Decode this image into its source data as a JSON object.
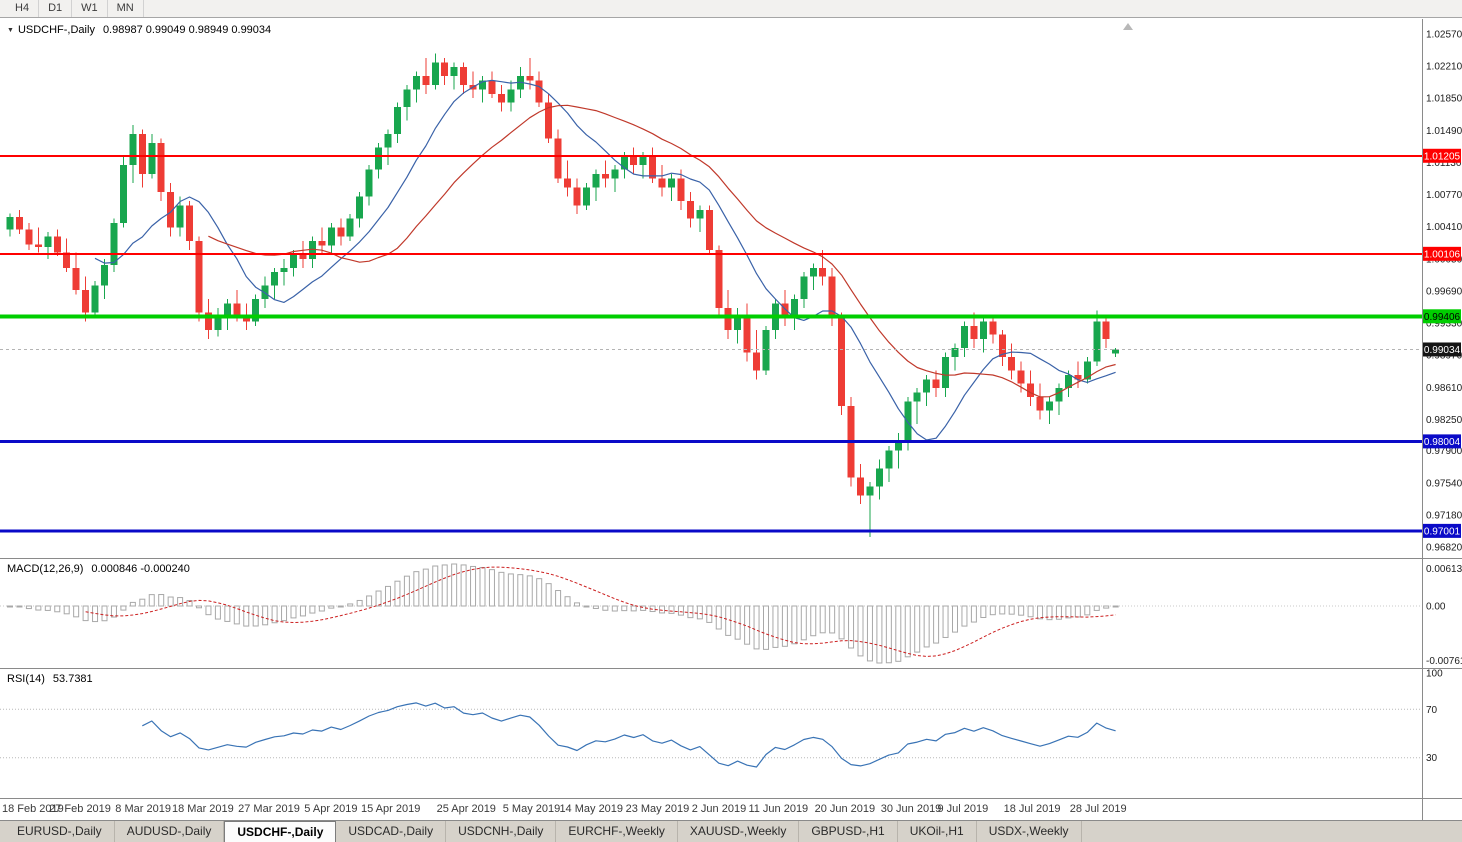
{
  "toolbar": {
    "timeframes": [
      "H4",
      "D1",
      "W1",
      "MN"
    ]
  },
  "main_chart": {
    "symbol_title": "USDCHF-,Daily",
    "ohlc_text": "0.98987 0.99049 0.98949 0.99034",
    "current_price": 0.99034,
    "axis_ticks": [
      "1.02570",
      "1.02210",
      "1.01850",
      "1.01490",
      "1.01130",
      "1.00770",
      "1.00410",
      "1.00050",
      "0.99690",
      "0.99330",
      "0.98970",
      "0.98610",
      "0.98250",
      "0.97900",
      "0.97540",
      "0.97180",
      "0.96820"
    ],
    "badges": [
      {
        "text": "1.01205",
        "price": 1.01205,
        "bg": "#ff0000",
        "fg": "#ffffff"
      },
      {
        "text": "1.00106",
        "price": 1.00106,
        "bg": "#ff0000",
        "fg": "#ffffff"
      },
      {
        "text": "0.99406",
        "price": 0.99406,
        "bg": "#00ce00",
        "fg": "#000000"
      },
      {
        "text": "0.99034",
        "price": 0.99034,
        "bg": "#141414",
        "fg": "#ffffff"
      },
      {
        "text": "0.98004",
        "price": 0.98004,
        "bg": "#0a0ac8",
        "fg": "#ffffff"
      },
      {
        "text": "0.97001",
        "price": 0.97001,
        "bg": "#0a0ac8",
        "fg": "#ffffff"
      }
    ],
    "hlines": [
      {
        "price": 1.01205,
        "color": "#ff0000",
        "width": 2
      },
      {
        "price": 1.00106,
        "color": "#ff0000",
        "width": 2
      },
      {
        "price": 0.99406,
        "color": "#00ce00",
        "width": 4
      },
      {
        "price": 0.98004,
        "color": "#0a0ac8",
        "width": 3
      },
      {
        "price": 0.97001,
        "color": "#0a0ac8",
        "width": 3
      }
    ]
  },
  "chart_data": {
    "type": "candlestick",
    "title": "USDCHF-,Daily",
    "x_labels": [
      {
        "idx": 0,
        "label": "18 Feb 2019"
      },
      {
        "idx": 7,
        "label": "27 Feb 2019"
      },
      {
        "idx": 14,
        "label": "8 Mar 2019"
      },
      {
        "idx": 20,
        "label": "18 Mar 2019"
      },
      {
        "idx": 27,
        "label": "27 Mar 2019"
      },
      {
        "idx": 34,
        "label": "5 Apr 2019"
      },
      {
        "idx": 40,
        "label": "15 Apr 2019"
      },
      {
        "idx": 48,
        "label": "25 Apr 2019"
      },
      {
        "idx": 55,
        "label": "5 May 2019"
      },
      {
        "idx": 61,
        "label": "14 May 2019"
      },
      {
        "idx": 68,
        "label": "23 May 2019"
      },
      {
        "idx": 75,
        "label": "2 Jun 2019"
      },
      {
        "idx": 81,
        "label": "11 Jun 2019"
      },
      {
        "idx": 88,
        "label": "20 Jun 2019"
      },
      {
        "idx": 95,
        "label": "30 Jun 2019"
      },
      {
        "idx": 101,
        "label": "9 Jul 2019"
      },
      {
        "idx": 108,
        "label": "18 Jul 2019"
      },
      {
        "idx": 115,
        "label": "28 Jul 2019"
      }
    ],
    "ohlc": [
      [
        1.0038,
        1.0056,
        1.003,
        1.0052
      ],
      [
        1.0052,
        1.006,
        1.0033,
        1.0038
      ],
      [
        1.0038,
        1.0045,
        1.0015,
        1.0021
      ],
      [
        1.0021,
        1.004,
        1.0012,
        1.0018
      ],
      [
        1.0018,
        1.0035,
        1.0005,
        1.003
      ],
      [
        1.003,
        1.0038,
        1.0008,
        1.0012
      ],
      [
        1.0012,
        1.0028,
        0.999,
        0.9995
      ],
      [
        0.9995,
        1.0012,
        0.9965,
        0.997
      ],
      [
        0.997,
        0.9985,
        0.9935,
        0.9945
      ],
      [
        0.9945,
        0.998,
        0.994,
        0.9975
      ],
      [
        0.9975,
        1.0005,
        0.996,
        0.9998
      ],
      [
        0.9998,
        1.005,
        0.999,
        1.0045
      ],
      [
        1.0045,
        1.012,
        1.004,
        1.011
      ],
      [
        1.011,
        1.0155,
        1.009,
        1.0145
      ],
      [
        1.0145,
        1.015,
        1.0085,
        1.01
      ],
      [
        1.01,
        1.0145,
        1.0095,
        1.0135
      ],
      [
        1.0135,
        1.014,
        1.007,
        1.008
      ],
      [
        1.008,
        1.009,
        1.003,
        1.004
      ],
      [
        1.004,
        1.0075,
        1.003,
        1.0065
      ],
      [
        1.0065,
        1.007,
        1.0015,
        1.0025
      ],
      [
        1.0025,
        1.003,
        0.9935,
        0.9945
      ],
      [
        0.9945,
        0.996,
        0.9915,
        0.9925
      ],
      [
        0.9925,
        0.995,
        0.9918,
        0.994
      ],
      [
        0.994,
        0.996,
        0.9925,
        0.9955
      ],
      [
        0.9955,
        0.997,
        0.9935,
        0.9942
      ],
      [
        0.9942,
        0.9955,
        0.9925,
        0.9935
      ],
      [
        0.9935,
        0.9965,
        0.993,
        0.996
      ],
      [
        0.996,
        0.9985,
        0.995,
        0.9975
      ],
      [
        0.9975,
        0.9995,
        0.996,
        0.999
      ],
      [
        0.999,
        1.0005,
        0.9975,
        0.9995
      ],
      [
        0.9995,
        1.0015,
        0.9985,
        1.001
      ],
      [
        1.001,
        1.0025,
        0.9995,
        1.0005
      ],
      [
        1.0005,
        1.003,
        0.9995,
        1.0025
      ],
      [
        1.0025,
        1.004,
        1.001,
        1.002
      ],
      [
        1.002,
        1.0045,
        1.001,
        1.004
      ],
      [
        1.004,
        1.005,
        1.002,
        1.003
      ],
      [
        1.003,
        1.0055,
        1.0025,
        1.005
      ],
      [
        1.005,
        1.008,
        1.004,
        1.0075
      ],
      [
        1.0075,
        1.011,
        1.0065,
        1.0105
      ],
      [
        1.0105,
        1.0135,
        1.0095,
        1.013
      ],
      [
        1.013,
        1.015,
        1.011,
        1.0145
      ],
      [
        1.0145,
        1.018,
        1.0135,
        1.0175
      ],
      [
        1.0175,
        1.02,
        1.016,
        1.0195
      ],
      [
        1.0195,
        1.0215,
        1.018,
        1.021
      ],
      [
        1.021,
        1.023,
        1.019,
        1.02
      ],
      [
        1.02,
        1.0235,
        1.0195,
        1.0225
      ],
      [
        1.0225,
        1.023,
        1.02,
        1.021
      ],
      [
        1.021,
        1.0225,
        1.0195,
        1.022
      ],
      [
        1.022,
        1.0225,
        1.019,
        1.02
      ],
      [
        1.02,
        1.0215,
        1.0185,
        1.0195
      ],
      [
        1.0195,
        1.021,
        1.018,
        1.0205
      ],
      [
        1.0205,
        1.0215,
        1.0185,
        1.019
      ],
      [
        1.019,
        1.02,
        1.017,
        1.018
      ],
      [
        1.018,
        1.0205,
        1.017,
        1.0195
      ],
      [
        1.0195,
        1.022,
        1.0185,
        1.021
      ],
      [
        1.021,
        1.023,
        1.0195,
        1.0205
      ],
      [
        1.0205,
        1.0215,
        1.0175,
        1.018
      ],
      [
        1.018,
        1.019,
        1.0135,
        1.014
      ],
      [
        1.014,
        1.015,
        1.009,
        1.0095
      ],
      [
        1.0095,
        1.0115,
        1.0075,
        1.0085
      ],
      [
        1.0085,
        1.0095,
        1.0055,
        1.0065
      ],
      [
        1.0065,
        1.009,
        1.006,
        1.0085
      ],
      [
        1.0085,
        1.0105,
        1.007,
        1.01
      ],
      [
        1.01,
        1.0115,
        1.0085,
        1.0095
      ],
      [
        1.0095,
        1.011,
        1.008,
        1.0105
      ],
      [
        1.0105,
        1.0125,
        1.0095,
        1.012
      ],
      [
        1.012,
        1.013,
        1.01,
        1.011
      ],
      [
        1.011,
        1.0125,
        1.0095,
        1.012
      ],
      [
        1.012,
        1.013,
        1.009,
        1.0095
      ],
      [
        1.0095,
        1.011,
        1.0075,
        1.0085
      ],
      [
        1.0085,
        1.01,
        1.007,
        1.0095
      ],
      [
        1.0095,
        1.0105,
        1.006,
        1.007
      ],
      [
        1.007,
        1.008,
        1.004,
        1.005
      ],
      [
        1.005,
        1.0065,
        1.0035,
        1.006
      ],
      [
        1.006,
        1.0065,
        1.001,
        1.0015
      ],
      [
        1.0015,
        1.002,
        0.994,
        0.995
      ],
      [
        0.995,
        0.997,
        0.9915,
        0.9925
      ],
      [
        0.9925,
        0.995,
        0.991,
        0.994
      ],
      [
        0.994,
        0.9955,
        0.989,
        0.99
      ],
      [
        0.99,
        0.9925,
        0.987,
        0.988
      ],
      [
        0.988,
        0.993,
        0.9875,
        0.9925
      ],
      [
        0.9925,
        0.996,
        0.9915,
        0.9955
      ],
      [
        0.9955,
        0.997,
        0.993,
        0.994
      ],
      [
        0.994,
        0.9965,
        0.9925,
        0.996
      ],
      [
        0.996,
        0.999,
        0.995,
        0.9985
      ],
      [
        0.9985,
        1.0,
        0.997,
        0.9995
      ],
      [
        0.9995,
        1.0015,
        0.9975,
        0.9985
      ],
      [
        0.9985,
        0.9995,
        0.993,
        0.994
      ],
      [
        0.994,
        0.9945,
        0.983,
        0.984
      ],
      [
        0.984,
        0.985,
        0.975,
        0.976
      ],
      [
        0.976,
        0.9775,
        0.973,
        0.974
      ],
      [
        0.974,
        0.9755,
        0.9693,
        0.975
      ],
      [
        0.975,
        0.978,
        0.9735,
        0.977
      ],
      [
        0.977,
        0.9795,
        0.9755,
        0.979
      ],
      [
        0.979,
        0.981,
        0.977,
        0.98
      ],
      [
        0.98,
        0.985,
        0.979,
        0.9845
      ],
      [
        0.9845,
        0.986,
        0.982,
        0.9855
      ],
      [
        0.9855,
        0.9875,
        0.984,
        0.987
      ],
      [
        0.987,
        0.988,
        0.985,
        0.986
      ],
      [
        0.986,
        0.99,
        0.985,
        0.9895
      ],
      [
        0.9895,
        0.991,
        0.988,
        0.9905
      ],
      [
        0.9905,
        0.9935,
        0.9895,
        0.993
      ],
      [
        0.993,
        0.9945,
        0.9905,
        0.9915
      ],
      [
        0.9915,
        0.994,
        0.99,
        0.9935
      ],
      [
        0.9935,
        0.994,
        0.991,
        0.992
      ],
      [
        0.992,
        0.9925,
        0.9885,
        0.9895
      ],
      [
        0.9895,
        0.991,
        0.987,
        0.988
      ],
      [
        0.988,
        0.989,
        0.9855,
        0.9865
      ],
      [
        0.9865,
        0.988,
        0.984,
        0.985
      ],
      [
        0.985,
        0.9865,
        0.9825,
        0.9835
      ],
      [
        0.9835,
        0.985,
        0.982,
        0.9845
      ],
      [
        0.9845,
        0.9865,
        0.983,
        0.986
      ],
      [
        0.986,
        0.988,
        0.985,
        0.9875
      ],
      [
        0.9875,
        0.989,
        0.986,
        0.987
      ],
      [
        0.987,
        0.9895,
        0.9865,
        0.989
      ],
      [
        0.989,
        0.9947,
        0.9885,
        0.9935
      ],
      [
        0.9935,
        0.994,
        0.9905,
        0.9915
      ],
      [
        0.98987,
        0.99049,
        0.98949,
        0.99034
      ]
    ]
  },
  "macd_panel": {
    "label": "MACD(12,26,9)",
    "values": "0.000846 -0.000240",
    "axis_max": "0.00613",
    "axis_zero": "0.00",
    "axis_min": "-0.007612"
  },
  "rsi_panel": {
    "label": "RSI(14)",
    "value": "53.7381",
    "axis": [
      "100",
      "70",
      "30"
    ],
    "levels": [
      70,
      30
    ]
  },
  "tabs": {
    "items": [
      "EURUSD-,Daily",
      "AUDUSD-,Daily",
      "USDCHF-,Daily",
      "USDCAD-,Daily",
      "USDCNH-,Daily",
      "EURCHF-,Weekly",
      "XAUUSD-,Weekly",
      "GBPUSD-,H1",
      "UKOil-,H1",
      "USDX-,Weekly"
    ],
    "active": "USDCHF-,Daily"
  },
  "colors": {
    "up": "#18a64e",
    "down": "#ee3c35",
    "ma_fast": "#3a62a8",
    "ma_slow": "#c0392b",
    "macd_hist": "#a8a8a8",
    "macd_signal": "#cc2020",
    "rsi_line": "#3973b5",
    "axis_text": "#1c1c1c"
  }
}
